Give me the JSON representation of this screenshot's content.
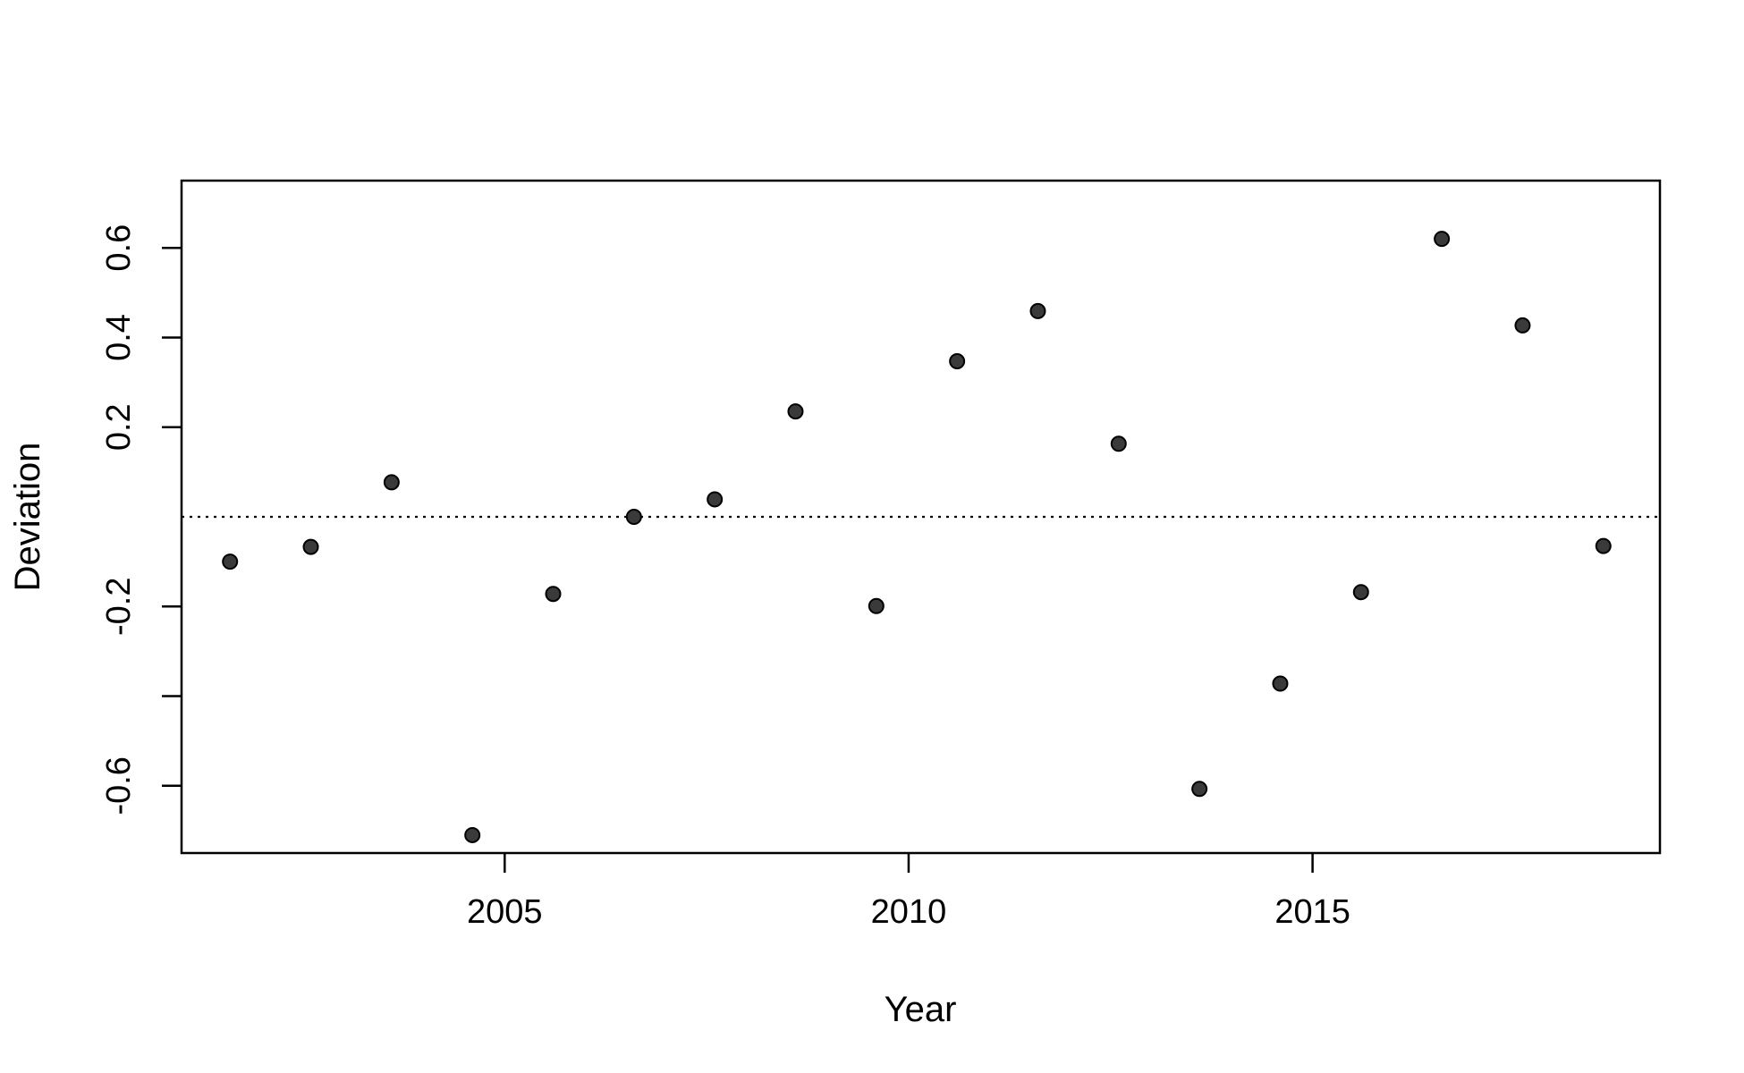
{
  "chart_data": {
    "type": "scatter",
    "title": "",
    "xlabel": "Year",
    "ylabel": "Deviation",
    "xlim": [
      2001,
      2019.3
    ],
    "ylim": [
      -0.75,
      0.75
    ],
    "xticks": [
      2005,
      2010,
      2015
    ],
    "xtick_labels": [
      "2005",
      "2010",
      "2015"
    ],
    "yticks": [
      -0.6,
      -0.4,
      -0.2,
      0.2,
      0.4,
      0.6
    ],
    "ytick_labels": [
      "-0.6",
      "",
      "-0.2",
      "0.2",
      "0.4",
      "0.6"
    ],
    "reference_line": {
      "y": 0,
      "style": "dotted"
    },
    "grid": false,
    "point_color": "#3a3a3a",
    "x": [
      2001.6,
      2002.6,
      2003.6,
      2004.6,
      2005.6,
      2006.6,
      2007.6,
      2008.6,
      2009.6,
      2010.6,
      2011.6,
      2012.6,
      2013.6,
      2014.6,
      2015.6,
      2016.6,
      2017.6,
      2018.6
    ],
    "y": [
      -0.1,
      -0.067,
      0.077,
      -0.71,
      -0.172,
      0.0,
      0.039,
      0.235,
      -0.199,
      0.347,
      0.459,
      0.163,
      -0.607,
      -0.372,
      -0.168,
      0.62,
      0.427,
      -0.065
    ]
  }
}
